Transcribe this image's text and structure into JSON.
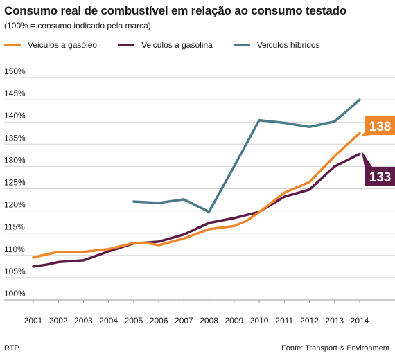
{
  "chart_data": {
    "type": "line",
    "title": "Consumo real de combustível em relação ao consumo testado",
    "subtitle": "(100% = consumo indicado pela marca)",
    "x": [
      2001,
      2002,
      2003,
      2004,
      2005,
      2006,
      2007,
      2008,
      2009,
      2010,
      2011,
      2012,
      2013,
      2014
    ],
    "x_ticks": [
      "2001",
      "2002",
      "2003",
      "2004",
      "2005",
      "2006",
      "2007",
      "2008",
      "2009",
      "2010",
      "2011",
      "2012",
      "2013",
      "2014"
    ],
    "y_ticks": [
      "100%",
      "105%",
      "110%",
      "115%",
      "120%",
      "125%",
      "130%",
      "135%",
      "140%",
      "145%",
      "150%"
    ],
    "y_tick_values": [
      100,
      105,
      110,
      115,
      120,
      125,
      130,
      135,
      140,
      145,
      150
    ],
    "ylim": [
      100,
      150
    ],
    "xlim": [
      2001,
      2014.6
    ],
    "grid": true,
    "legend_position": "top",
    "series": [
      {
        "name": "Veiculos a gasóleo",
        "color": "#f0862a",
        "points": [
          [
            2001,
            109.5
          ],
          [
            2001.5,
            110.2
          ],
          [
            2002,
            110.8
          ],
          [
            2003,
            110.8
          ],
          [
            2004,
            111.4
          ],
          [
            2005,
            112.8
          ],
          [
            2005.5,
            112.8
          ],
          [
            2006,
            112.3
          ],
          [
            2007,
            113.8
          ],
          [
            2008,
            115.9
          ],
          [
            2009,
            116.6
          ],
          [
            2009.5,
            117.8
          ],
          [
            2010,
            119.7
          ],
          [
            2011,
            124.1
          ],
          [
            2011.5,
            125.3
          ],
          [
            2012,
            126.5
          ],
          [
            2013,
            132.3
          ],
          [
            2014,
            137.5
          ]
        ],
        "end_label": "138"
      },
      {
        "name": "Veiculos a gasolina",
        "color": "#5e1a46",
        "points": [
          [
            2001,
            107.5
          ],
          [
            2001.5,
            107.9
          ],
          [
            2002,
            108.5
          ],
          [
            2003,
            108.9
          ],
          [
            2004,
            110.9
          ],
          [
            2005,
            112.7
          ],
          [
            2005.5,
            112.9
          ],
          [
            2006,
            113.1
          ],
          [
            2007,
            114.7
          ],
          [
            2008,
            117.3
          ],
          [
            2009,
            118.4
          ],
          [
            2010,
            119.8
          ],
          [
            2011,
            123.2
          ],
          [
            2012,
            124.8
          ],
          [
            2013,
            130.0
          ],
          [
            2014,
            132.8
          ]
        ],
        "end_label": "133"
      },
      {
        "name": "Veiculos híbridos",
        "color": "#4a7a8c",
        "points": [
          [
            2005,
            122.1
          ],
          [
            2006,
            121.8
          ],
          [
            2007,
            122.6
          ],
          [
            2008,
            119.8
          ],
          [
            2009,
            130.0
          ],
          [
            2010,
            140.4
          ],
          [
            2011,
            139.8
          ],
          [
            2012,
            138.9
          ],
          [
            2013,
            140.1
          ],
          [
            2014,
            145.0
          ]
        ],
        "end_label": ""
      }
    ]
  },
  "footer": {
    "source_left": "RTP",
    "source_right": "Fonte: Transport & Environment"
  }
}
